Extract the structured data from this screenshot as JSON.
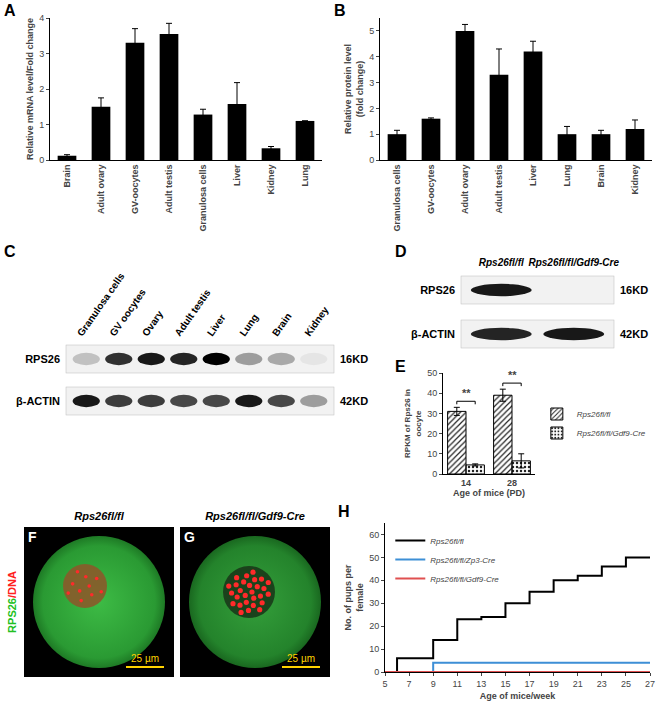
{
  "chart_data": [
    {
      "panel": "A",
      "type": "bar",
      "categories": [
        "Brain",
        "Adult ovary",
        "GV-oocytes",
        "Adult testis",
        "Granulosa cells",
        "Liver",
        "Kidney",
        "Lung"
      ],
      "values": [
        0.12,
        1.5,
        3.3,
        3.55,
        1.28,
        1.58,
        0.33,
        1.1
      ],
      "errors": [
        0.03,
        0.25,
        0.4,
        0.3,
        0.15,
        0.6,
        0.05,
        0
      ],
      "color": "#000000",
      "ylabel": [
        "Relative mRNA level/Fold change"
      ],
      "ylim": [
        0,
        4
      ],
      "yticks": [
        0,
        1,
        2,
        3,
        4
      ],
      "grid": false
    },
    {
      "panel": "B",
      "type": "bar",
      "categories": [
        "Granulosa cells",
        "GV-oocytes",
        "Adult ovary",
        "Adult testis",
        "Liver",
        "Lung",
        "Brain",
        "Kidney"
      ],
      "values": [
        1.0,
        1.6,
        5.0,
        3.3,
        4.2,
        1.0,
        1.0,
        1.2
      ],
      "errors": [
        0.15,
        0.03,
        0.25,
        1.0,
        0.4,
        0.3,
        0.15,
        0.35
      ],
      "color": "#000000",
      "ylabel": [
        "Relative protein level",
        "(fold change)"
      ],
      "ylim": [
        0,
        5.5
      ],
      "yticks": [
        0,
        1,
        2,
        3,
        4,
        5
      ],
      "grid": false
    },
    {
      "panel": "E",
      "type": "bar",
      "categories": [
        "14",
        "28"
      ],
      "series": [
        {
          "name": "Rps26fl/fl",
          "color": "#555555",
          "values": [
            31,
            39
          ],
          "errors": [
            2,
            3
          ]
        },
        {
          "name": "Rps26fl/fl/Gdf9-Cre",
          "color": "#bbbbbb",
          "values": [
            4.5,
            6.5
          ],
          "errors": [
            0.5,
            3.5
          ]
        }
      ],
      "annotations": [
        {
          "category": "14",
          "text": "**"
        },
        {
          "category": "28",
          "text": "**"
        }
      ],
      "xlabel": "Age of mice (PD)",
      "ylabel": [
        "RPKM of Rps26 in",
        "oocyte"
      ],
      "ylim": [
        0,
        50
      ],
      "yticks": [
        0,
        10,
        20,
        30,
        40,
        50
      ],
      "legend": "right",
      "grid": false
    },
    {
      "panel": "H",
      "type": "line",
      "line_style": "step",
      "series": [
        {
          "name": "Rps26fl/fl",
          "color": "#000000",
          "x": [
            5,
            6,
            9,
            11,
            13,
            15,
            17,
            19,
            21,
            23,
            25,
            27
          ],
          "values": [
            0,
            6,
            14,
            23,
            24,
            30,
            35,
            40,
            42,
            46,
            50,
            50
          ]
        },
        {
          "name": "Rps26fl/fl/Zp3-Cre",
          "color": "#3d8fd6",
          "x": [
            5,
            9,
            27
          ],
          "values": [
            0,
            4,
            4
          ]
        },
        {
          "name": "Rps26fl/fl/Gdf9-Cre",
          "color": "#e05050",
          "x": [
            5,
            27
          ],
          "values": [
            0,
            0
          ]
        }
      ],
      "xlabel": "Age of mice/week",
      "ylabel": [
        "No. of pups per",
        "female"
      ],
      "xlim": [
        5,
        27
      ],
      "xticks": [
        5,
        7,
        9,
        11,
        13,
        15,
        17,
        19,
        21,
        23,
        25,
        27
      ],
      "ylim": [
        0,
        65
      ],
      "yticks": [
        0,
        10,
        20,
        30,
        40,
        50,
        60
      ],
      "legend": "upper left",
      "grid": false
    }
  ],
  "blots": [
    {
      "panel": "C",
      "lanes": [
        "Granulosa cells",
        "GV oocytes",
        "Ovary",
        "Adult testis",
        "Liver",
        "Lung",
        "Brain",
        "Kidney"
      ],
      "rows": [
        {
          "protein": "RPS26",
          "size": "16KD",
          "intensity": [
            0.2,
            0.8,
            0.9,
            0.85,
            1.0,
            0.35,
            0.3,
            0.05
          ]
        },
        {
          "protein": "β-ACTIN",
          "size": "42KD",
          "intensity": [
            0.9,
            0.75,
            0.75,
            0.7,
            0.7,
            0.9,
            0.7,
            0.35
          ]
        }
      ]
    },
    {
      "panel": "D",
      "lanes": [
        "Rps26fl/fl",
        "Rps26fl/fl/Gdf9-Cre"
      ],
      "rows": [
        {
          "protein": "RPS26",
          "size": "16KD",
          "intensity": [
            0.9,
            0.0
          ]
        },
        {
          "protein": "β-ACTIN",
          "size": "42KD",
          "intensity": [
            0.85,
            0.9
          ]
        }
      ]
    }
  ],
  "images": [
    {
      "panel": "F",
      "title": "Rps26fl/fl",
      "stain": [
        {
          "text": "RPS26",
          "color": "#22c022"
        },
        {
          "text": "/DNA",
          "color": "#ff2020"
        }
      ],
      "scale_bar": "25 µm"
    },
    {
      "panel": "G",
      "title": "Rps26fl/fl/Gdf9-Cre",
      "scale_bar": "25 µm"
    }
  ]
}
